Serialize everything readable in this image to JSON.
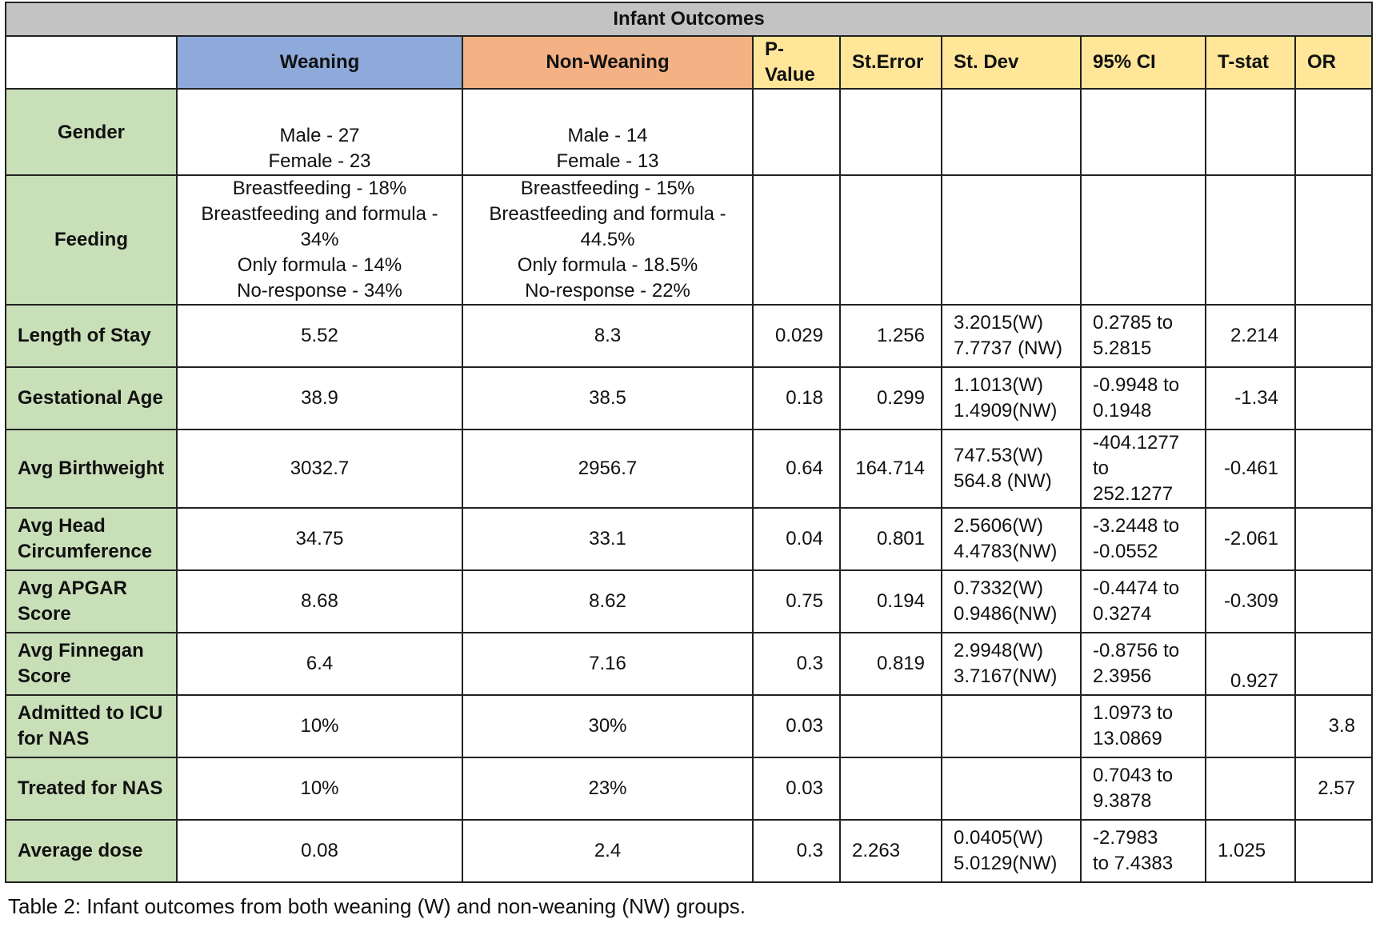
{
  "table": {
    "title": "Infant Outcomes",
    "headers": {
      "weaning": "Weaning",
      "non_weaning": "Non-Weaning",
      "p_value": "P-\nValue",
      "st_error": "St.Error",
      "st_dev": "St. Dev",
      "ci": "95% CI",
      "t_stat": "T-stat",
      "or": "OR"
    },
    "header_colors": {
      "title": "#c3c3c3",
      "weaning": "#8eaadb",
      "non_weaning": "#f4b183",
      "stats": "#ffe699",
      "row_labels": "#c9dfb8"
    },
    "rows": {
      "gender": {
        "label": "Gender",
        "weaning": "Male - 27\nFemale - 23",
        "non_weaning": "Male - 14\nFemale - 13",
        "p_value": "",
        "st_error": "",
        "st_dev": "",
        "ci": "",
        "t_stat": "",
        "or": ""
      },
      "feeding": {
        "label": "Feeding",
        "weaning": "Breastfeeding - 18%\nBreastfeeding and formula -\n34%\nOnly formula - 14%\nNo-response - 34%",
        "non_weaning": "Breastfeeding - 15%\nBreastfeeding and formula -\n44.5%\nOnly formula - 18.5%\nNo-response - 22%",
        "p_value": "",
        "st_error": "",
        "st_dev": "",
        "ci": "",
        "t_stat": "",
        "or": ""
      },
      "length_of_stay": {
        "label": "Length of Stay",
        "weaning": "5.52",
        "non_weaning": "8.3",
        "p_value": "0.029",
        "st_error": "1.256",
        "st_dev": "3.2015(W)\n7.7737 (NW)",
        "ci": "0.2785 to\n5.2815",
        "t_stat": "2.214",
        "or": ""
      },
      "gestational_age": {
        "label": "Gestational Age",
        "weaning": "38.9",
        "non_weaning": "38.5",
        "p_value": "0.18",
        "st_error": "0.299",
        "st_dev": "1.1013(W)\n1.4909(NW)",
        "ci": "-0.9948 to\n0.1948",
        "t_stat": "-1.34",
        "or": ""
      },
      "avg_birthweight": {
        "label": "Avg Birthweight",
        "weaning": "3032.7",
        "non_weaning": "2956.7",
        "p_value": "0.64",
        "st_error": "164.714",
        "st_dev": "747.53(W)\n564.8 (NW)",
        "ci": "-404.1277\nto\n252.1277",
        "t_stat": "-0.461",
        "or": ""
      },
      "avg_head_circumference": {
        "label": "Avg Head\nCircumference",
        "weaning": "34.75",
        "non_weaning": "33.1",
        "p_value": "0.04",
        "st_error": "0.801",
        "st_dev": "2.5606(W)\n4.4783(NW)",
        "ci": "-3.2448 to\n-0.0552",
        "t_stat": "-2.061",
        "or": ""
      },
      "avg_apgar": {
        "label": "Avg APGAR\nScore",
        "weaning": "8.68",
        "non_weaning": "8.62",
        "p_value": "0.75",
        "st_error": "0.194",
        "st_dev": "0.7332(W)\n0.9486(NW)",
        "ci": "-0.4474 to\n0.3274",
        "t_stat": "-0.309",
        "or": ""
      },
      "avg_finnegan": {
        "label": "Avg Finnegan\nScore",
        "weaning": "6.4",
        "non_weaning": "7.16",
        "p_value": "0.3",
        "st_error": "0.819",
        "st_dev": "2.9948(W)\n3.7167(NW)",
        "ci": "-0.8756 to\n2.3956",
        "t_stat": "0.927",
        "or": ""
      },
      "admitted_icu": {
        "label": "Admitted to ICU\nfor NAS",
        "weaning": "10%",
        "non_weaning": "30%",
        "p_value": "0.03",
        "st_error": "",
        "st_dev": "",
        "ci": "1.0973 to\n13.0869",
        "t_stat": "",
        "or": "3.8"
      },
      "treated_nas": {
        "label": "Treated for NAS",
        "weaning": "10%",
        "non_weaning": "23%",
        "p_value": "0.03",
        "st_error": "",
        "st_dev": "",
        "ci": "0.7043 to\n9.3878",
        "t_stat": "",
        "or": "2.57"
      },
      "average_dose": {
        "label": "Average dose",
        "weaning": "0.08",
        "non_weaning": "2.4",
        "p_value": "0.3",
        "st_error": "2.263",
        "st_dev": "0.0405(W)\n5.0129(NW)",
        "ci": "-2.7983\nto 7.4383",
        "t_stat": "1.025",
        "or": ""
      }
    }
  },
  "caption": "Table 2: Infant outcomes from both weaning (W) and non-weaning (NW) groups."
}
